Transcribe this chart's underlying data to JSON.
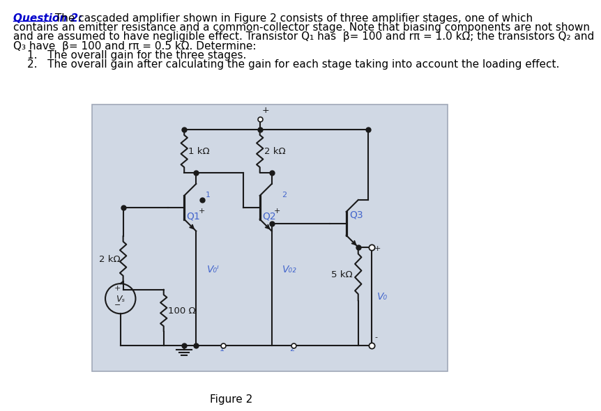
{
  "title_label": "Question 2:",
  "title_color": "#0000cc",
  "body_text_line1": " The cascaded amplifier shown in Figure 2 consists of three amplifier stages, one of which",
  "body_text_line2": "contains an emitter resistance and a common-collector stage. Note that biasing components are not shown",
  "body_text_line3": "and are assumed to have negligible effect. Transistor Q₁ has  β= 100 and rπ = 1.0 kΩ; the transistors Q₂ and",
  "body_text_line4": "Q₃ have  β= 100 and rπ = 0.5 kΩ. Determine:",
  "item1": "The overall gain for the three stages.",
  "item2": "The overall gain after calculating the gain for each stage taking into account the loading effect.",
  "fig_label": "Figure 2",
  "bg_color": "#ffffff",
  "circuit_bg": "#d0d8e4",
  "circuit_border": "#a0a8b8",
  "line_color": "#1a1a1a",
  "label_color": "#4466cc",
  "res_1k": "1 kΩ",
  "res_2k_top": "2 kΩ",
  "res_2k_left": "2 kΩ",
  "res_100": "100 Ω",
  "res_5k": "5 kΩ",
  "q1_label": "Q1",
  "q2_label": "Q2",
  "q3_label": "Q3",
  "voi_label": "V₀ᴵ",
  "vo2_label": "V₀₂",
  "vo_label": "V₀",
  "vs_label": "Vₛ",
  "node1p_label": "1'",
  "node2p_label": "2'",
  "font_size_body": 11.0,
  "font_size_label": 10,
  "font_size_component": 9.5,
  "font_size_fig": 11
}
